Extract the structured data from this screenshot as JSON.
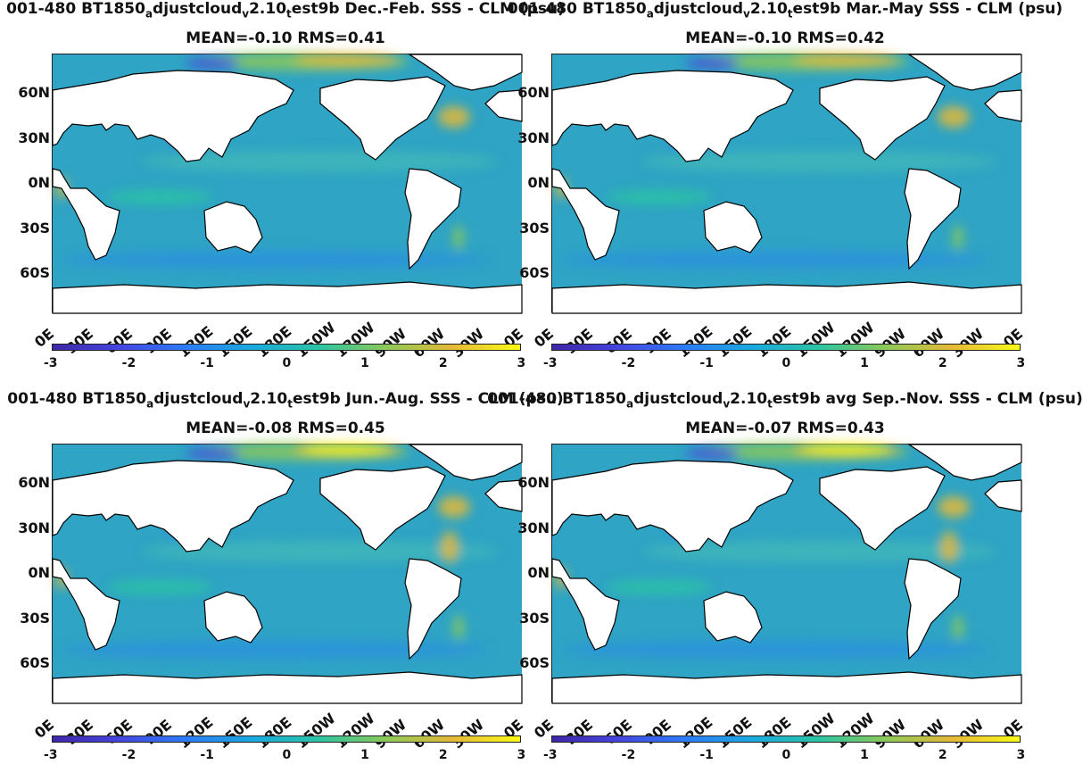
{
  "colors": {
    "ocean": "#2fa4c4",
    "land": "#ffffff",
    "colormap": [
      "#3e26a8",
      "#4545e0",
      "#2c7cf6",
      "#1aa9df",
      "#2cc4a3",
      "#8cc958",
      "#e6b937",
      "#f9fb15"
    ]
  },
  "panels": [
    {
      "title": "001-480 BT1850_adjustcloud_v2.10_test9b  Dec.-Feb. SSS - CLM (psu)",
      "stats": "MEAN=-0.10   RMS=0.41"
    },
    {
      "title": "001-480 BT1850_adjustcloud_v2.10_test9b Mar.-May SSS - CLM (psu)",
      "stats": "MEAN=-0.10   RMS=0.42"
    },
    {
      "title": "001-480 BT1850_adjustcloud_v2.10_test9b Jun.-Aug. SSS - CLM (psu)",
      "stats": "MEAN=-0.08   RMS=0.45"
    },
    {
      "title": "001-480 BT1850_adjustcloud_v2.10_test9b avg Sep.-Nov. SSS - CLM (psu)",
      "stats": "MEAN=-0.07   RMS=0.43"
    }
  ],
  "chart_data": [
    {
      "type": "heatmap",
      "title": "001-480 BT1850_adjustcloud_v2.10_test9b  Dec.-Feb. SSS - CLM (psu)",
      "mean": -0.1,
      "rms": 0.41,
      "xticks": [
        "0E",
        "30E",
        "60E",
        "90E",
        "120E",
        "150E",
        "180E",
        "150W",
        "120W",
        "90W",
        "60W",
        "30W",
        "0E"
      ],
      "yticks": [
        "60N",
        "30N",
        "0N",
        "30S",
        "60S"
      ],
      "clim": [
        -3,
        3
      ],
      "colorbar_ticks": [
        "-3",
        "-2",
        "-1",
        "0",
        "1",
        "2",
        "3"
      ]
    },
    {
      "type": "heatmap",
      "title": "001-480 BT1850_adjustcloud_v2.10_test9b Mar.-May SSS - CLM (psu)",
      "mean": -0.1,
      "rms": 0.42,
      "xticks": [
        "0E",
        "30E",
        "60E",
        "90E",
        "120E",
        "150E",
        "180E",
        "150W",
        "120W",
        "90W",
        "60W",
        "30W",
        "0E"
      ],
      "yticks": [
        "60N",
        "30N",
        "0N",
        "30S",
        "60S"
      ],
      "clim": [
        -3,
        3
      ],
      "colorbar_ticks": [
        "-3",
        "-2",
        "-1",
        "0",
        "1",
        "2",
        "3"
      ]
    },
    {
      "type": "heatmap",
      "title": "001-480 BT1850_adjustcloud_v2.10_test9b Jun.-Aug. SSS - CLM (psu)",
      "mean": -0.08,
      "rms": 0.45,
      "xticks": [
        "0E",
        "30E",
        "60E",
        "90E",
        "120E",
        "150E",
        "180E",
        "150W",
        "120W",
        "90W",
        "60W",
        "30W",
        "0E"
      ],
      "yticks": [
        "60N",
        "30N",
        "0N",
        "30S",
        "60S"
      ],
      "clim": [
        -3,
        3
      ],
      "colorbar_ticks": [
        "-3",
        "-2",
        "-1",
        "0",
        "1",
        "2",
        "3"
      ]
    },
    {
      "type": "heatmap",
      "title": "001-480 BT1850_adjustcloud_v2.10_test9b avg Sep.-Nov. SSS - CLM (psu)",
      "mean": -0.07,
      "rms": 0.43,
      "xticks": [
        "0E",
        "30E",
        "60E",
        "90E",
        "120E",
        "150E",
        "180E",
        "150W",
        "120W",
        "90W",
        "60W",
        "30W",
        "0E"
      ],
      "yticks": [
        "60N",
        "30N",
        "0N",
        "30S",
        "60S"
      ],
      "clim": [
        -3,
        3
      ],
      "colorbar_ticks": [
        "-3",
        "-2",
        "-1",
        "0",
        "1",
        "2",
        "3"
      ]
    }
  ]
}
